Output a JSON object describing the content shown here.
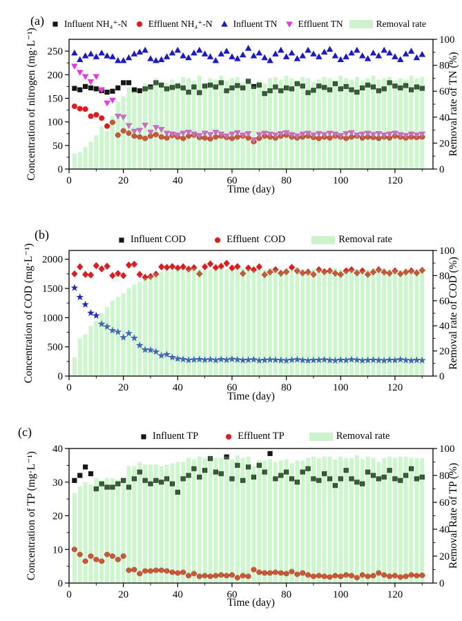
{
  "chart_data": [
    {
      "panel": "(a)",
      "type": "scatter+bar",
      "xlabel": "Time (day)",
      "ylabel": "Concentration of nitrogen (mg·L⁻¹)",
      "y2label": "Removal rate of TN (%)",
      "xlim": [
        0,
        134
      ],
      "ylim": [
        0,
        275
      ],
      "y2lim": [
        0,
        100
      ],
      "xticks": [
        0,
        20,
        40,
        60,
        80,
        100,
        120
      ],
      "yticks": [
        0,
        50,
        100,
        150,
        200,
        250
      ],
      "y2ticks": [
        0,
        20,
        40,
        60,
        80,
        100
      ],
      "legend": [
        {
          "label": "Influent NH₄⁺-N",
          "marker": "square",
          "color": "#161616"
        },
        {
          "label": "Effluent NH₄⁺-N",
          "marker": "circle",
          "color": "#e3191c"
        },
        {
          "label": "Influent TN",
          "marker": "triangle-up",
          "color": "#1a1acd"
        },
        {
          "label": "Effluent TN",
          "marker": "triangle-down",
          "color": "#e83ae0"
        },
        {
          "label": "Removal rate",
          "marker": "swatch",
          "color": "#cdf3cd"
        }
      ],
      "x_days": [
        2,
        4,
        6,
        8,
        10,
        12,
        14,
        16,
        18,
        20,
        22,
        24,
        26,
        28,
        30,
        32,
        34,
        36,
        38,
        40,
        42,
        44,
        46,
        48,
        50,
        52,
        54,
        56,
        58,
        60,
        62,
        64,
        66,
        68,
        70,
        72,
        74,
        76,
        78,
        80,
        82,
        84,
        86,
        88,
        90,
        92,
        94,
        96,
        98,
        100,
        102,
        104,
        106,
        108,
        110,
        112,
        114,
        116,
        118,
        120,
        122,
        124,
        126,
        128,
        130
      ],
      "series": [
        {
          "name": "Influent NH₄⁺-N",
          "marker": "square",
          "color": "#161616",
          "axis": "y",
          "values": [
            171,
            168,
            175,
            172,
            170,
            166,
            163,
            165,
            172,
            183,
            183,
            168,
            166,
            170,
            174,
            183,
            178,
            170,
            173,
            176,
            172,
            163,
            174,
            162,
            176,
            178,
            174,
            183,
            166,
            172,
            177,
            172,
            186,
            175,
            178,
            160,
            166,
            174,
            166,
            172,
            170,
            181,
            176,
            162,
            167,
            176,
            173,
            168,
            181,
            170,
            175,
            168,
            163,
            172,
            178,
            174,
            166,
            170,
            183,
            176,
            172,
            177,
            168,
            174,
            171
          ]
        },
        {
          "name": "Effluent NH₄⁺-N",
          "marker": "circle",
          "color": "#e3191c",
          "axis": "y",
          "values": [
            133,
            128,
            127,
            112,
            115,
            108,
            91,
            99,
            72,
            81,
            76,
            70,
            68,
            65,
            70,
            73,
            68,
            66,
            71,
            68,
            65,
            70,
            72,
            67,
            66,
            64,
            68,
            70,
            67,
            65,
            68,
            70,
            66,
            58,
            65,
            70,
            68,
            66,
            70,
            72,
            68,
            66,
            68,
            70,
            67,
            65,
            68,
            66,
            70,
            68,
            65,
            68,
            70,
            66,
            68,
            67,
            65,
            68,
            66,
            70,
            68,
            66,
            68,
            67,
            68
          ]
        },
        {
          "name": "Influent TN",
          "marker": "triangle-up",
          "color": "#1a1acd",
          "axis": "y",
          "values": [
            246,
            232,
            240,
            244,
            238,
            246,
            240,
            238,
            230,
            230,
            236,
            244,
            248,
            252,
            234,
            230,
            232,
            238,
            246,
            252,
            240,
            236,
            246,
            252,
            244,
            238,
            230,
            244,
            250,
            238,
            234,
            242,
            256,
            240,
            246,
            236,
            230,
            244,
            252,
            238,
            246,
            234,
            240,
            252,
            244,
            238,
            248,
            254,
            240,
            232,
            238,
            246,
            252,
            240,
            234,
            246,
            240,
            252,
            246,
            238,
            232,
            244,
            250,
            236,
            243
          ]
        },
        {
          "name": "Effluent TN",
          "marker": "triangle-down",
          "color": "#e83ae0",
          "axis": "y",
          "values": [
            218,
            205,
            196,
            185,
            196,
            168,
            140,
            146,
            112,
            110,
            92,
            80,
            82,
            93,
            78,
            88,
            84,
            76,
            74,
            72,
            76,
            78,
            74,
            71,
            76,
            73,
            78,
            74,
            70,
            74,
            77,
            72,
            75,
            62,
            73,
            76,
            74,
            72,
            75,
            77,
            73,
            70,
            74,
            76,
            72,
            75,
            73,
            76,
            74,
            71,
            75,
            77,
            72,
            74,
            76,
            73,
            75,
            72,
            74,
            76,
            73,
            71,
            74,
            72,
            74
          ]
        }
      ],
      "bars": {
        "name": "Removal rate",
        "color": "rgba(110,230,110,0.35)",
        "swatch": "#cdf3cd",
        "axis": "y2",
        "values": [
          12,
          13,
          17,
          21,
          26,
          33,
          29,
          41,
          52,
          56,
          63,
          60,
          58,
          66,
          64,
          70,
          67,
          66,
          69,
          67,
          71,
          70,
          68,
          72,
          66,
          70,
          69,
          72,
          68,
          70,
          71,
          67,
          70,
          64,
          68,
          66,
          70,
          71,
          69,
          72,
          70,
          68,
          71,
          70,
          67,
          69,
          71,
          70,
          68,
          72,
          70,
          69,
          71,
          68,
          70,
          72,
          69,
          70,
          71,
          68,
          70,
          69,
          72,
          70,
          71
        ]
      }
    },
    {
      "panel": "(b)",
      "type": "scatter+bar",
      "xlabel": "Time (day)",
      "ylabel": "Concentration of COD (mg·L⁻¹)",
      "y2label": "Removal rate of COD (%)",
      "xlim": [
        0,
        134
      ],
      "ylim": [
        0,
        2150
      ],
      "y2lim": [
        0,
        100
      ],
      "xticks": [
        0,
        20,
        40,
        60,
        80,
        100,
        120
      ],
      "yticks": [
        0,
        500,
        1000,
        1500,
        2000
      ],
      "y2ticks": [
        0,
        20,
        40,
        60,
        80,
        100
      ],
      "legend": [
        {
          "label": "Influent COD",
          "marker": "square",
          "color": "#161616"
        },
        {
          "label": "Effluent  COD",
          "marker": "circle",
          "color": "#e3191c"
        },
        {
          "label": "Removal rate",
          "marker": "swatch",
          "color": "#cdf3cd"
        }
      ],
      "x_days": [
        2,
        4,
        6,
        8,
        10,
        12,
        14,
        16,
        18,
        20,
        22,
        24,
        26,
        28,
        30,
        32,
        34,
        36,
        38,
        40,
        42,
        44,
        46,
        48,
        50,
        52,
        54,
        56,
        58,
        60,
        62,
        64,
        66,
        68,
        70,
        72,
        74,
        76,
        78,
        80,
        82,
        84,
        86,
        88,
        90,
        92,
        94,
        96,
        98,
        100,
        102,
        104,
        106,
        108,
        110,
        112,
        114,
        116,
        118,
        120,
        122,
        124,
        126,
        128,
        130
      ],
      "series": [
        {
          "name": "Influent COD",
          "marker": "diamond",
          "color": "#e3191c",
          "axis": "y",
          "values": [
            1750,
            1870,
            1740,
            1730,
            1890,
            1835,
            1880,
            1720,
            1755,
            1720,
            1900,
            1915,
            1740,
            1690,
            1705,
            1745,
            1870,
            1860,
            1875,
            1850,
            1870,
            1830,
            1855,
            1750,
            1870,
            1920,
            1855,
            1880,
            1930,
            1850,
            1875,
            1755,
            1850,
            1820,
            1870,
            1735,
            1780,
            1820,
            1760,
            1785,
            1860,
            1800,
            1765,
            1780,
            1740,
            1820,
            1785,
            1800,
            1760,
            1740,
            1800,
            1820,
            1765,
            1800,
            1740,
            1780,
            1820,
            1780,
            1760,
            1800,
            1750,
            1780,
            1800,
            1765,
            1810
          ]
        },
        {
          "name": "Effluent COD",
          "marker": "star",
          "color": "#2228cf",
          "axis": "y",
          "values": [
            1510,
            1350,
            1225,
            1080,
            1035,
            890,
            845,
            780,
            755,
            660,
            730,
            650,
            525,
            450,
            445,
            415,
            350,
            370,
            320,
            295,
            285,
            272,
            280,
            285,
            275,
            282,
            270,
            285,
            275,
            290,
            280,
            270,
            275,
            282,
            265,
            272,
            280,
            275,
            270,
            265,
            275,
            282,
            270,
            265,
            272,
            275,
            280,
            270,
            265,
            275,
            270,
            282,
            275,
            265,
            270,
            275,
            270,
            265,
            275,
            270,
            282,
            270,
            265,
            272,
            268
          ]
        }
      ],
      "bars": {
        "name": "Removal rate",
        "color": "rgba(110,230,110,0.35)",
        "swatch": "#cdf3cd",
        "axis": "y2",
        "values": [
          15,
          30,
          33,
          40,
          44,
          50,
          55,
          60,
          63,
          66,
          70,
          73,
          75,
          78,
          80,
          82,
          83,
          84,
          85,
          85,
          84,
          85,
          86,
          85,
          84,
          85,
          85,
          86,
          85,
          84,
          85,
          86,
          85,
          84,
          85,
          85,
          86,
          85,
          84,
          85,
          85,
          86,
          85,
          84,
          85,
          85,
          84,
          85,
          86,
          85,
          84,
          85,
          85,
          84,
          85,
          85,
          86,
          85,
          84,
          85,
          84,
          85,
          85,
          84,
          86
        ]
      }
    },
    {
      "panel": "(c)",
      "type": "scatter+bar",
      "xlabel": "Time (day)",
      "ylabel": "Concentration of TP (mg·L⁻¹)",
      "y2label": "Removal Rate of TP (%)",
      "xlim": [
        0,
        134
      ],
      "ylim": [
        0,
        40
      ],
      "y2lim": [
        0,
        100
      ],
      "xticks": [
        0,
        20,
        40,
        60,
        80,
        100,
        120
      ],
      "yticks": [
        0,
        10,
        20,
        30,
        40
      ],
      "y2ticks": [
        0,
        20,
        40,
        60,
        80,
        100
      ],
      "legend": [
        {
          "label": "Influent TP",
          "marker": "square",
          "color": "#161616"
        },
        {
          "label": "Effluent TP",
          "marker": "circle",
          "color": "#e3191c"
        },
        {
          "label": "Removal rate",
          "marker": "swatch",
          "color": "#cdf3cd"
        }
      ],
      "x_days": [
        2,
        4,
        6,
        8,
        10,
        12,
        14,
        16,
        18,
        20,
        22,
        24,
        26,
        28,
        30,
        32,
        34,
        36,
        38,
        40,
        42,
        44,
        46,
        48,
        50,
        52,
        54,
        56,
        58,
        60,
        62,
        64,
        66,
        68,
        70,
        72,
        74,
        76,
        78,
        80,
        82,
        84,
        86,
        88,
        90,
        92,
        94,
        96,
        98,
        100,
        102,
        104,
        106,
        108,
        110,
        112,
        114,
        116,
        118,
        120,
        122,
        124,
        126,
        128,
        130
      ],
      "series": [
        {
          "name": "Influent TP",
          "marker": "square",
          "color": "#161616",
          "axis": "y",
          "values": [
            30.5,
            32,
            34.5,
            32.5,
            28,
            29.5,
            28.5,
            28.5,
            29.5,
            30.5,
            28.5,
            31,
            33,
            30.5,
            29.5,
            30.5,
            30,
            31,
            29.5,
            27,
            31,
            32,
            34,
            31.5,
            33.5,
            37,
            33,
            32.5,
            37.5,
            31,
            35,
            30.5,
            34.5,
            31.5,
            35,
            33,
            38.5,
            31,
            32,
            33,
            31,
            30,
            33,
            34,
            31,
            30.5,
            32.5,
            31,
            29,
            31,
            33.5,
            31,
            30,
            29.5,
            33,
            32,
            31,
            31.5,
            33.5,
            31,
            30.5,
            32,
            34,
            31,
            31.5
          ]
        },
        {
          "name": "Effluent TP",
          "marker": "circle",
          "color": "#e3191c",
          "axis": "y",
          "values": [
            10,
            8.5,
            6.5,
            8,
            7,
            6.5,
            8.5,
            8,
            7,
            8,
            3.8,
            4,
            2.8,
            3.6,
            3.6,
            3.8,
            3.8,
            3.6,
            3.2,
            3,
            3.2,
            2.2,
            2.8,
            2,
            2.2,
            2,
            2.2,
            2.4,
            2.2,
            2.4,
            1.6,
            2.2,
            2,
            4,
            3.2,
            3,
            3,
            3.2,
            3,
            2.8,
            3.4,
            2.6,
            3,
            2.4,
            2,
            2.2,
            2,
            1.8,
            2.2,
            2,
            2.4,
            2.2,
            1.6,
            2.4,
            2,
            2.2,
            3,
            2.4,
            2,
            2.2,
            1.8,
            2,
            2.4,
            2.2,
            2.3
          ]
        }
      ],
      "bars": {
        "name": "Removal rate",
        "color": "rgba(110,230,110,0.35)",
        "swatch": "#cdf3cd",
        "axis": "y2",
        "values": [
          67,
          72,
          75,
          73,
          78,
          76,
          78,
          78,
          77,
          78,
          87,
          87,
          90,
          88,
          88,
          88,
          87,
          88,
          89,
          90,
          90,
          93,
          92,
          94,
          93,
          95,
          93,
          93,
          94,
          92,
          95,
          93,
          94,
          87,
          91,
          91,
          92,
          90,
          91,
          92,
          89,
          91,
          91,
          93,
          94,
          93,
          94,
          94,
          92,
          94,
          93,
          93,
          95,
          92,
          94,
          93,
          90,
          93,
          94,
          93,
          94,
          94,
          93,
          93,
          93
        ]
      }
    }
  ]
}
